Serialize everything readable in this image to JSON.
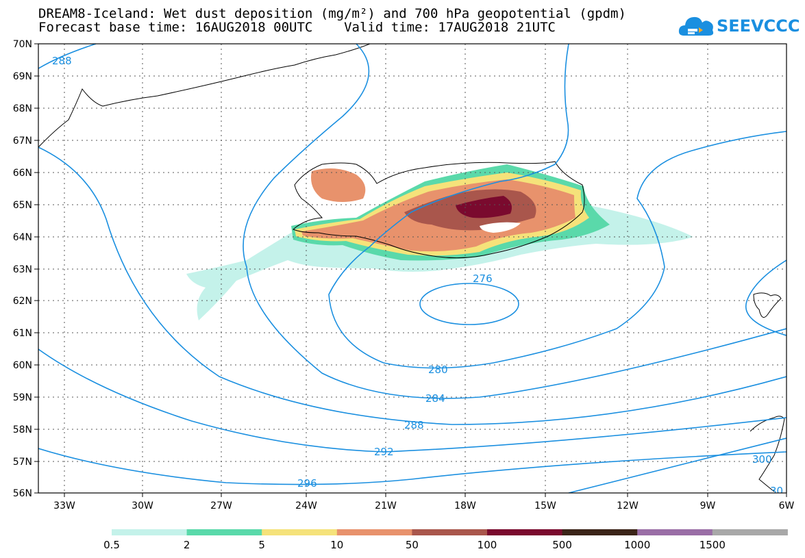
{
  "title_line1": "DREAM8-Iceland: Wet dust deposition (mg/m²) and 700 hPa geopotential (gpdm)",
  "title_line2": "Forecast base time: 16AUG2018 00UTC    Valid time: 17AUG2018 21UTC",
  "logo": {
    "text": "SEEVCCC",
    "icon": "cloud-icon",
    "color": "#1a8fe0"
  },
  "colors": {
    "contour": "#1a8fe0",
    "coast": "#000000"
  },
  "lat_labels": [
    "70N",
    "69N",
    "68N",
    "67N",
    "66N",
    "65N",
    "64N",
    "63N",
    "62N",
    "61N",
    "60N",
    "59N",
    "58N",
    "57N",
    "56N"
  ],
  "lon_labels": [
    "33W",
    "30W",
    "27W",
    "24W",
    "21W",
    "18W",
    "15W",
    "12W",
    "9W",
    "6W"
  ],
  "contour_labels": [
    {
      "text": "288"
    },
    {
      "text": "276"
    },
    {
      "text": "280"
    },
    {
      "text": "284"
    },
    {
      "text": "288"
    },
    {
      "text": "292"
    },
    {
      "text": "296"
    },
    {
      "text": "300"
    },
    {
      "text": "30"
    }
  ],
  "legend": {
    "labels": [
      "0.5",
      "2",
      "5",
      "10",
      "50",
      "100",
      "500",
      "1000",
      "1500"
    ],
    "colors": [
      "#c4f2ea",
      "#5ad9aa",
      "#f5e27a",
      "#e8926c",
      "#a9564c",
      "#7a0a2e",
      "#3b2418",
      "#9a6ea6",
      "#a8a8a8"
    ]
  }
}
